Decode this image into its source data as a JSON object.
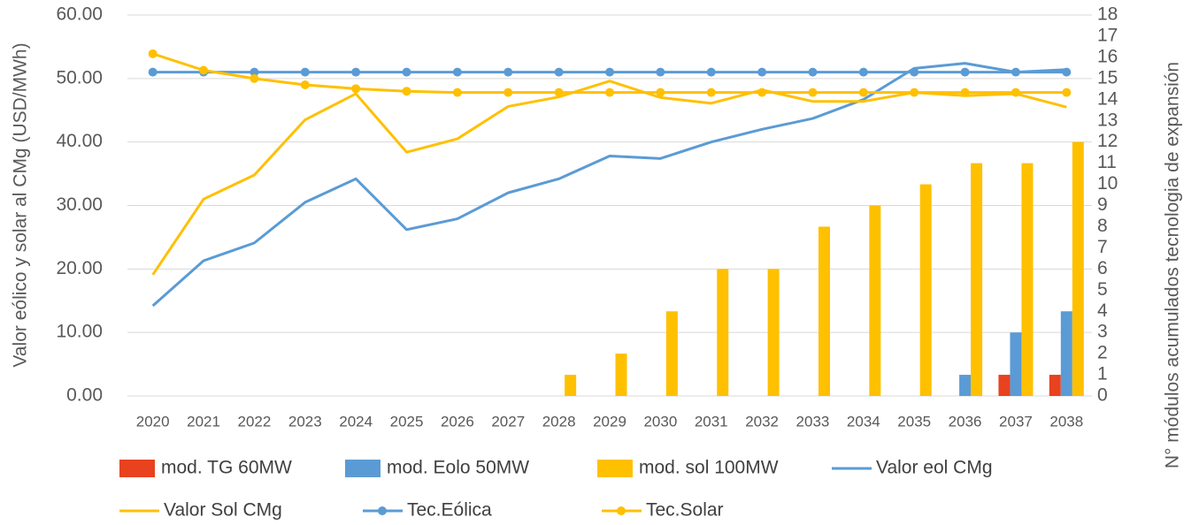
{
  "chart_data": {
    "type": "combo",
    "y_label": "Valor eólico y solar al CMg (USD/MWh)",
    "y2_label": "N° módulos acumulados tecnologia de expansión",
    "categories": [
      "2020",
      "2021",
      "2022",
      "2023",
      "2024",
      "2025",
      "2026",
      "2027",
      "2028",
      "2029",
      "2030",
      "2031",
      "2032",
      "2033",
      "2034",
      "2035",
      "2036",
      "2037",
      "2038"
    ],
    "ylim": [
      0,
      60
    ],
    "yticks": [
      {
        "value": 0,
        "label": "0.00"
      },
      {
        "value": 10,
        "label": "10.00"
      },
      {
        "value": 20,
        "label": "20.00"
      },
      {
        "value": 30,
        "label": "30.00"
      },
      {
        "value": 40,
        "label": "40.00"
      },
      {
        "value": 50,
        "label": "50.00"
      },
      {
        "value": 60,
        "label": "60.00"
      }
    ],
    "y2lim": [
      0,
      18
    ],
    "y2ticks": [
      0,
      1,
      2,
      3,
      4,
      5,
      6,
      7,
      8,
      9,
      10,
      11,
      12,
      13,
      14,
      15,
      16,
      17,
      18
    ],
    "grid": true,
    "legend": "bottom",
    "series": [
      {
        "name": "mod. TG 60MW",
        "type": "bar",
        "axis": "y2",
        "color": "#e8421e",
        "values": [
          0,
          0,
          0,
          0,
          0,
          0,
          0,
          0,
          0,
          0,
          0,
          0,
          0,
          0,
          0,
          0,
          0,
          1,
          1
        ]
      },
      {
        "name": "mod. Eolo 50MW",
        "type": "bar",
        "axis": "y2",
        "color": "#5b9bd5",
        "values": [
          0,
          0,
          0,
          0,
          0,
          0,
          0,
          0,
          0,
          0,
          0,
          0,
          0,
          0,
          0,
          0,
          1,
          3,
          4
        ]
      },
      {
        "name": "mod. sol 100MW",
        "type": "bar",
        "axis": "y2",
        "color": "#ffc000",
        "values": [
          0,
          0,
          0,
          0,
          0,
          0,
          0,
          0,
          1,
          2,
          4,
          6,
          6,
          8,
          9,
          10,
          11,
          11,
          12
        ]
      },
      {
        "name": "Valor eol CMg",
        "type": "line",
        "color": "#5b9bd5",
        "values": [
          14.2,
          21.3,
          24.1,
          30.5,
          34.2,
          26.2,
          27.9,
          32.0,
          34.2,
          37.8,
          37.4,
          40.0,
          42.0,
          43.7,
          46.7,
          51.6,
          52.4,
          51.0,
          51.4
        ]
      },
      {
        "name": "Valor Sol CMg",
        "type": "line",
        "color": "#ffc000",
        "values": [
          19.1,
          31.0,
          34.8,
          43.5,
          47.6,
          38.4,
          40.5,
          45.6,
          47.1,
          49.6,
          47.0,
          46.1,
          48.2,
          46.4,
          46.4,
          47.8,
          47.3,
          47.6,
          45.5
        ]
      },
      {
        "name": "Tec.Eólica",
        "type": "line",
        "marker": true,
        "color": "#5b9bd5",
        "values": [
          51.0,
          51.0,
          51.0,
          51.0,
          51.0,
          51.0,
          51.0,
          51.0,
          51.0,
          51.0,
          51.0,
          51.0,
          51.0,
          51.0,
          51.0,
          51.0,
          51.0,
          51.0,
          51.0
        ]
      },
      {
        "name": "Tec.Solar",
        "type": "line",
        "marker": true,
        "color": "#ffc000",
        "values": [
          53.9,
          51.3,
          50.0,
          49.0,
          48.4,
          48.0,
          47.8,
          47.8,
          47.8,
          47.8,
          47.8,
          47.8,
          47.8,
          47.8,
          47.8,
          47.8,
          47.8,
          47.8,
          47.8
        ]
      }
    ]
  }
}
